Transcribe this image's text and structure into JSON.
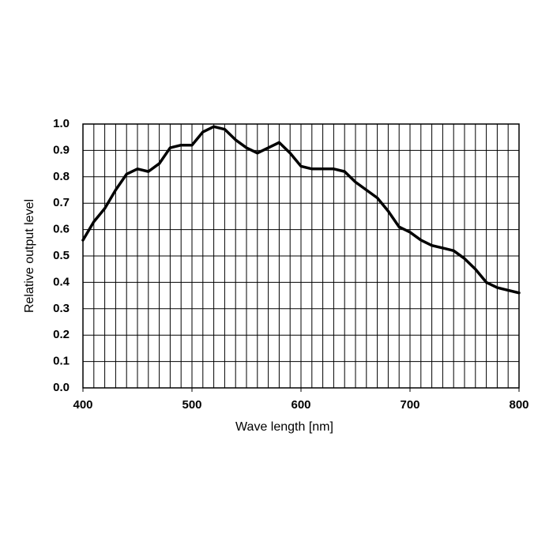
{
  "chart_data": {
    "type": "line",
    "xlabel": "Wave length [nm]",
    "ylabel": "Relative output level",
    "x": [
      400,
      410,
      420,
      430,
      440,
      450,
      460,
      470,
      480,
      490,
      500,
      510,
      520,
      530,
      540,
      550,
      560,
      570,
      580,
      590,
      600,
      610,
      620,
      630,
      640,
      650,
      660,
      670,
      680,
      690,
      700,
      710,
      720,
      730,
      740,
      750,
      760,
      770,
      780,
      790,
      800
    ],
    "series": [
      {
        "color": "#000000",
        "values": [
          0.56,
          0.63,
          0.68,
          0.75,
          0.81,
          0.83,
          0.82,
          0.85,
          0.91,
          0.92,
          0.92,
          0.97,
          0.99,
          0.98,
          0.94,
          0.91,
          0.89,
          0.91,
          0.93,
          0.89,
          0.84,
          0.83,
          0.83,
          0.83,
          0.82,
          0.78,
          0.75,
          0.72,
          0.67,
          0.61,
          0.59,
          0.56,
          0.54,
          0.53,
          0.52,
          0.49,
          0.45,
          0.4,
          0.38,
          0.37,
          0.36
        ]
      }
    ],
    "xlim": [
      400,
      800
    ],
    "xticks": [
      400,
      500,
      600,
      700,
      800
    ],
    "xgrid_step": 10,
    "ylim": [
      0,
      1
    ],
    "yticks": [
      {
        "value": 0,
        "label": "0.0"
      },
      0.1,
      0.2,
      0.3,
      0.4,
      0.5,
      0.6,
      0.7,
      0.8,
      0.9,
      {
        "value": 1,
        "label": "1.0"
      }
    ],
    "grid": true
  }
}
